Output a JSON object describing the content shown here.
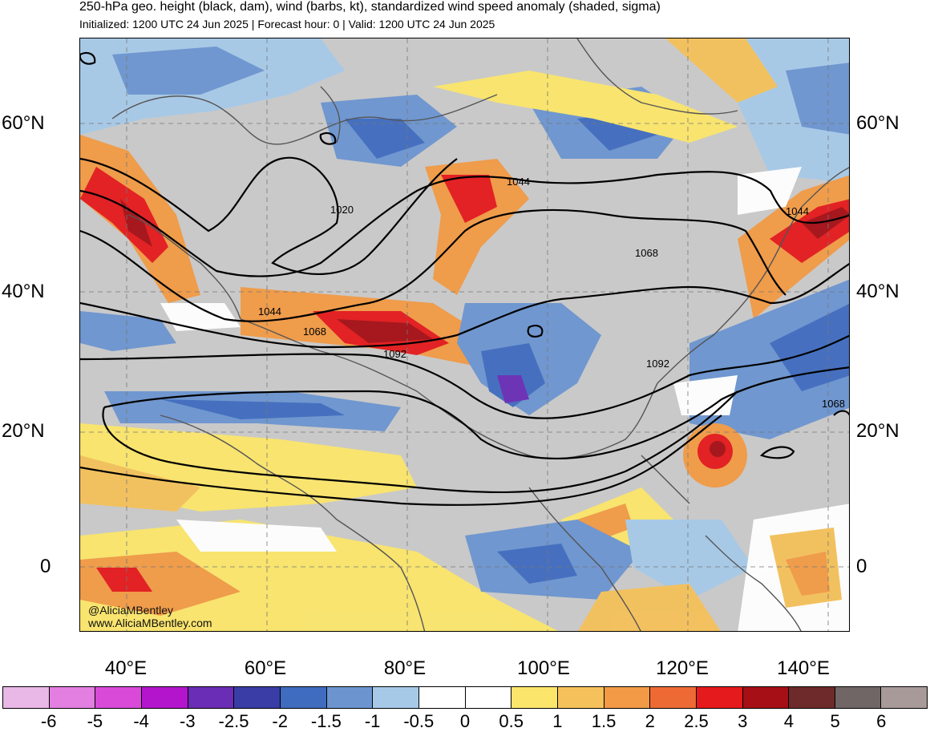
{
  "header": {
    "title": "250-hPa geo. height (black, dam), wind (barbs, kt), standardized wind speed anomaly (shaded, sigma)",
    "subtitle": "Initialized: 1200 UTC 24 Jun 2025 | Forecast hour: 0 | Valid: 1200 UTC 24 Jun 2025"
  },
  "latitude_labels": [
    "60°N",
    "40°N",
    "20°N",
    "0"
  ],
  "longitude_labels": [
    "40°E",
    "60°E",
    "80°E",
    "100°E",
    "120°E",
    "140°E"
  ],
  "contour_labels": [
    "1020",
    "1044",
    "1068",
    "1092",
    "1044",
    "1068",
    "1092",
    "1044",
    "1068"
  ],
  "colorbar": {
    "labels": [
      "-6",
      "-5",
      "-4",
      "-3",
      "-2.5",
      "-2",
      "-1.5",
      "-1",
      "-0.5",
      "0",
      "0.5",
      "1",
      "1.5",
      "2",
      "2.5",
      "3",
      "4",
      "5",
      "6"
    ],
    "colors": [
      "#e9b8e6",
      "#e27fe0",
      "#d94ad8",
      "#b315cc",
      "#6a2db5",
      "#3a3da6",
      "#3f6cbf",
      "#6c95d0",
      "#a7c9e8",
      "#ffffff",
      "#ffffff",
      "#fbe66b",
      "#f5c15a",
      "#f29a45",
      "#ee6a35",
      "#e41a1c",
      "#a50f15",
      "#6e2a2a",
      "#706666",
      "#a99a9a"
    ]
  },
  "credits": {
    "handle": "@AliciaMBentley",
    "website": "www.AliciaMBentley.com"
  }
}
